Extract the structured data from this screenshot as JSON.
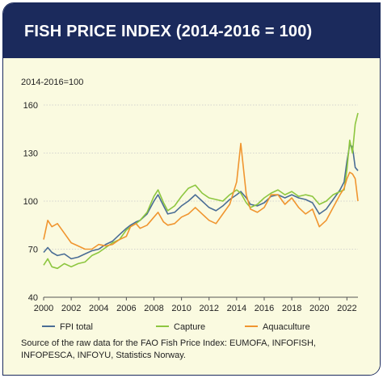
{
  "header": {
    "title": "FISH PRICE INDEX (2014-2016 = 100)"
  },
  "chart_data": {
    "type": "line",
    "title": "FISH PRICE INDEX (2014-2016 = 100)",
    "ylabel": "2014-2016=100",
    "xlabel": "",
    "xlim": [
      2000,
      2022.8
    ],
    "ylim": [
      40,
      160
    ],
    "yticks": [
      40,
      70,
      100,
      130,
      160
    ],
    "xticks": [
      2000,
      2002,
      2004,
      2006,
      2008,
      2010,
      2012,
      2014,
      2016,
      2018,
      2020,
      2022
    ],
    "grid": "horizontal",
    "legend_position": "bottom",
    "series": [
      {
        "name": "FPI total",
        "color": "#4a6d95",
        "x": [
          2000,
          2000.3,
          2000.6,
          2001,
          2001.5,
          2002,
          2002.5,
          2003,
          2003.5,
          2004,
          2004.5,
          2005,
          2005.5,
          2006,
          2006.3,
          2006.7,
          2007,
          2007.5,
          2008,
          2008.3,
          2008.7,
          2009,
          2009.5,
          2010,
          2010.5,
          2011,
          2011.5,
          2012,
          2012.5,
          2013,
          2013.5,
          2014,
          2014.3,
          2014.7,
          2015,
          2015.5,
          2016,
          2016.5,
          2017,
          2017.5,
          2018,
          2018.5,
          2019,
          2019.5,
          2020,
          2020.5,
          2021,
          2021.5,
          2021.8,
          2022,
          2022.2,
          2022.4,
          2022.6,
          2022.8
        ],
        "y": [
          68,
          71,
          68,
          66,
          67,
          64,
          65,
          67,
          69,
          70,
          73,
          75,
          79,
          83,
          85,
          87,
          88,
          92,
          100,
          104,
          97,
          92,
          93,
          97,
          100,
          104,
          100,
          96,
          94,
          97,
          101,
          104,
          106,
          102,
          98,
          97,
          99,
          103,
          104,
          102,
          104,
          102,
          101,
          99,
          92,
          95,
          101,
          107,
          112,
          125,
          135,
          134,
          121,
          119
        ]
      },
      {
        "name": "Capture",
        "color": "#8dc63f",
        "x": [
          2000,
          2000.3,
          2000.6,
          2001,
          2001.5,
          2002,
          2002.5,
          2003,
          2003.5,
          2004,
          2004.5,
          2005,
          2005.5,
          2006,
          2006.3,
          2006.7,
          2007,
          2007.5,
          2008,
          2008.3,
          2008.7,
          2009,
          2009.5,
          2010,
          2010.5,
          2011,
          2011.5,
          2012,
          2012.5,
          2013,
          2013.5,
          2014,
          2014.3,
          2014.7,
          2015,
          2015.5,
          2016,
          2016.5,
          2017,
          2017.5,
          2018,
          2018.5,
          2019,
          2019.5,
          2020,
          2020.5,
          2021,
          2021.5,
          2021.8,
          2022,
          2022.2,
          2022.4,
          2022.6,
          2022.8
        ],
        "y": [
          60,
          64,
          59,
          58,
          61,
          59,
          61,
          62,
          66,
          68,
          71,
          74,
          76,
          82,
          84,
          86,
          88,
          93,
          103,
          107,
          99,
          94,
          97,
          103,
          108,
          110,
          105,
          102,
          101,
          100,
          104,
          107,
          105,
          99,
          96,
          98,
          102,
          105,
          107,
          104,
          106,
          103,
          104,
          103,
          98,
          100,
          104,
          106,
          107,
          120,
          138,
          130,
          148,
          155
        ]
      },
      {
        "name": "Aquaculture",
        "color": "#f0952f",
        "x": [
          2000,
          2000.3,
          2000.6,
          2001,
          2001.5,
          2002,
          2002.5,
          2003,
          2003.5,
          2004,
          2004.5,
          2005,
          2005.5,
          2006,
          2006.3,
          2006.7,
          2007,
          2007.5,
          2008,
          2008.3,
          2008.7,
          2009,
          2009.5,
          2010,
          2010.5,
          2011,
          2011.5,
          2012,
          2012.5,
          2013,
          2013.5,
          2014,
          2014.3,
          2014.7,
          2015,
          2015.5,
          2016,
          2016.5,
          2017,
          2017.5,
          2018,
          2018.5,
          2019,
          2019.5,
          2020,
          2020.5,
          2021,
          2021.5,
          2021.8,
          2022,
          2022.2,
          2022.4,
          2022.6,
          2022.8
        ],
        "y": [
          76,
          88,
          84,
          86,
          80,
          74,
          72,
          70,
          70,
          73,
          72,
          73,
          76,
          78,
          84,
          86,
          83,
          85,
          90,
          93,
          87,
          85,
          86,
          90,
          92,
          96,
          92,
          88,
          86,
          92,
          98,
          112,
          136,
          104,
          95,
          93,
          96,
          104,
          104,
          98,
          102,
          96,
          92,
          95,
          84,
          88,
          96,
          104,
          108,
          114,
          118,
          117,
          114,
          100
        ]
      }
    ]
  },
  "source": "Source of the raw data for the FAO Fish Price Index: EUMOFA, INFOFISH, INFOPESCA, INFOYU, Statistics Norway."
}
